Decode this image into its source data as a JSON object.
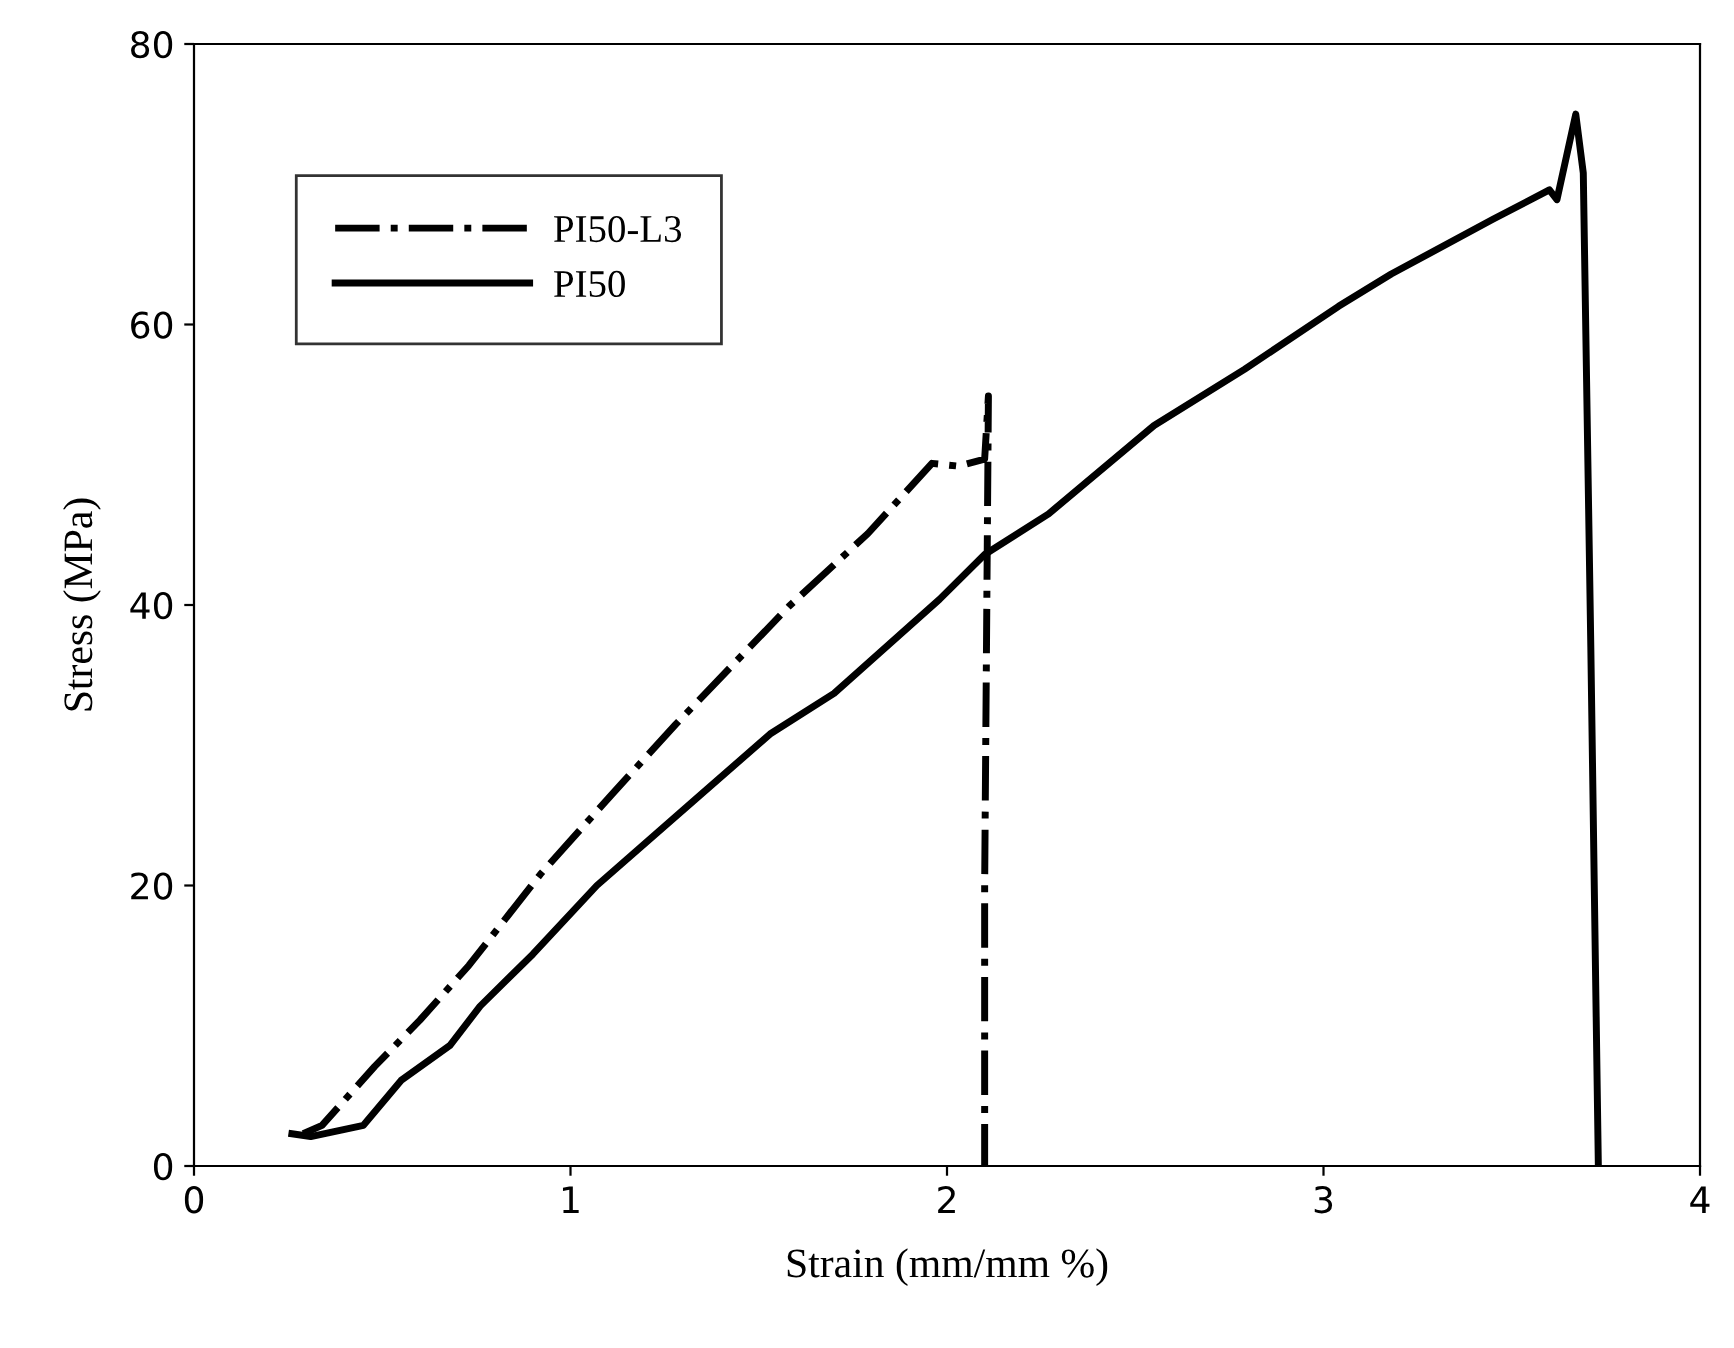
{
  "chart_data": {
    "type": "line",
    "xlabel": "Strain (mm/mm %)",
    "ylabel": "Stress (MPa)",
    "xlim": [
      0,
      4
    ],
    "ylim": [
      0,
      80
    ],
    "xticks": [
      0,
      1,
      2,
      3,
      4
    ],
    "yticks": [
      0,
      20,
      40,
      60,
      80
    ],
    "grid": false,
    "legend": "top left",
    "marker": "none",
    "series": [
      {
        "name": "PI50-L3",
        "color": "#000000",
        "line_style": "dashdot",
        "x": [
          0.29,
          0.34,
          0.48,
          0.6,
          0.73,
          0.92,
          1.11,
          1.28,
          1.58,
          1.79,
          1.96,
          2.03,
          2.1,
          2.11,
          2.1,
          2.1
        ],
        "values": [
          2.3,
          2.9,
          7.1,
          10.4,
          14.3,
          20.8,
          26.5,
          31.5,
          39.9,
          45.1,
          50.1,
          49.9,
          50.4,
          54.9,
          20,
          0
        ]
      },
      {
        "name": "PI50",
        "color": "#000000",
        "line_style": "solid",
        "x": [
          0.26,
          0.31,
          0.45,
          0.55,
          0.68,
          0.76,
          0.9,
          1.07,
          1.33,
          1.53,
          1.7,
          1.98,
          2.1,
          2.27,
          2.55,
          2.79,
          3.04,
          3.18,
          3.45,
          3.6,
          3.62,
          3.67,
          3.69,
          3.71,
          3.73
        ],
        "values": [
          2.3,
          2.1,
          2.9,
          6.1,
          8.6,
          11.4,
          15.1,
          20,
          26.1,
          30.8,
          33.7,
          40.4,
          43.6,
          46.5,
          52.8,
          56.8,
          61.3,
          63.6,
          67.5,
          69.6,
          68.9,
          75,
          70.8,
          37,
          0
        ]
      }
    ]
  }
}
